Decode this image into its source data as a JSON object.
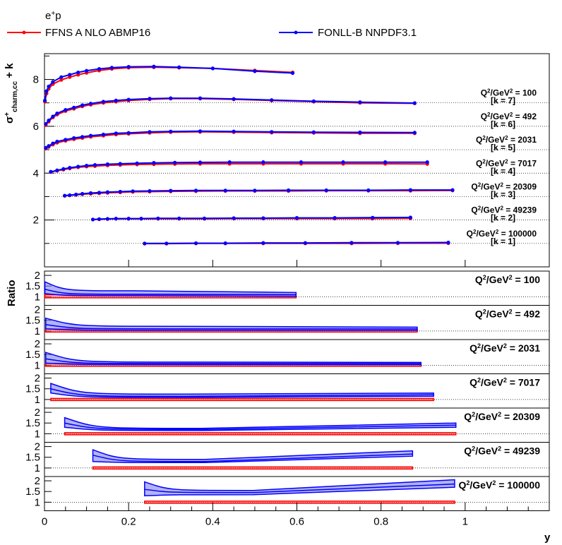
{
  "chart_data": {
    "type": "line",
    "header": {
      "process_label": "e",
      "process_sup": "+",
      "process_tail": "p"
    },
    "legend": [
      {
        "name": "FFNS A NLO ABMP16",
        "color": "#ff0000"
      },
      {
        "name": "FONLL-B NNPDF3.1",
        "color": "#0000ff"
      }
    ],
    "colors": {
      "ffns": "#ff0000",
      "fonll": "#0000ff",
      "fonll_band": "#8080ee",
      "ffns_band": "#ff6666"
    },
    "xlabel": "y",
    "ylabel_top": {
      "sigma": "σ",
      "sup": "+",
      "sub": "charm,cc",
      "tail": " + k"
    },
    "ylabel_ratio": "Ratio",
    "xlim": [
      0,
      1.2
    ],
    "x_ticks": [
      "0",
      "0.2",
      "0.4",
      "0.6",
      "0.8",
      "1"
    ],
    "top_ylim": [
      0,
      9.1
    ],
    "top_y_ticks": [
      "2",
      "4",
      "6",
      "8"
    ],
    "ratio_ylim": [
      0.6,
      2.2
    ],
    "ratio_y_ticks": [
      "1",
      "1.5",
      "2"
    ],
    "panels": [
      {
        "q2": "100",
        "k": "7",
        "label_prefix": "Q",
        "label_unit": "/GeV",
        "label_eq": " = ",
        "k_label": "[k = 7]",
        "ffns": {
          "x": [
            0.001,
            0.005,
            0.01,
            0.02,
            0.04,
            0.06,
            0.08,
            0.1,
            0.13,
            0.16,
            0.2,
            0.26,
            0.32,
            0.4,
            0.5,
            0.59
          ],
          "y": [
            7.05,
            7.4,
            7.6,
            7.8,
            7.98,
            8.1,
            8.2,
            8.28,
            8.38,
            8.45,
            8.5,
            8.52,
            8.5,
            8.47,
            8.38,
            8.3
          ]
        },
        "fonll": {
          "x": [
            0.001,
            0.005,
            0.01,
            0.02,
            0.04,
            0.06,
            0.08,
            0.1,
            0.13,
            0.16,
            0.2,
            0.26,
            0.32,
            0.4,
            0.5,
            0.59
          ],
          "y": [
            7.1,
            7.5,
            7.7,
            7.9,
            8.1,
            8.2,
            8.3,
            8.37,
            8.45,
            8.5,
            8.54,
            8.55,
            8.52,
            8.47,
            8.35,
            8.27
          ]
        },
        "ratio": {
          "xmax": 0.598,
          "fonll_lo": [
            1.15,
            1.05,
            1.02
          ],
          "fonll_hi": [
            1.7,
            1.28,
            1.2
          ],
          "fonll_c": [
            1.35,
            1.12,
            1.1
          ],
          "ffns_hi": 1.05
        }
      },
      {
        "q2": "492",
        "k": "6",
        "label_prefix": "Q",
        "label_unit": "/GeV",
        "label_eq": " = ",
        "k_label": "[k = 6]",
        "ffns": {
          "x": [
            0.003,
            0.01,
            0.02,
            0.03,
            0.05,
            0.07,
            0.09,
            0.11,
            0.14,
            0.17,
            0.2,
            0.25,
            0.3,
            0.37,
            0.45,
            0.54,
            0.64,
            0.75,
            0.88
          ],
          "y": [
            6.05,
            6.2,
            6.38,
            6.5,
            6.65,
            6.75,
            6.85,
            6.92,
            7.0,
            7.05,
            7.1,
            7.15,
            7.18,
            7.18,
            7.15,
            7.1,
            7.05,
            7.0,
            6.98
          ]
        },
        "fonll": {
          "x": [
            0.003,
            0.01,
            0.02,
            0.03,
            0.05,
            0.07,
            0.09,
            0.11,
            0.14,
            0.17,
            0.2,
            0.25,
            0.3,
            0.37,
            0.45,
            0.54,
            0.64,
            0.75,
            0.88
          ],
          "y": [
            6.1,
            6.25,
            6.42,
            6.55,
            6.7,
            6.8,
            6.9,
            6.97,
            7.05,
            7.1,
            7.14,
            7.18,
            7.2,
            7.2,
            7.17,
            7.12,
            7.07,
            7.03,
            6.99
          ]
        },
        "ratio": {
          "xmax": 0.886,
          "fonll_lo": [
            1.1,
            1.03,
            1.03
          ],
          "fonll_hi": [
            1.6,
            1.22,
            1.18
          ],
          "fonll_c": [
            1.3,
            1.1,
            1.1
          ],
          "ffns_hi": 1.05
        }
      },
      {
        "q2": "2031",
        "k": "5",
        "label_prefix": "Q",
        "label_unit": "/GeV",
        "label_eq": " = ",
        "k_label": "[k = 5]",
        "ffns": {
          "x": [
            0.003,
            0.01,
            0.02,
            0.03,
            0.05,
            0.07,
            0.09,
            0.11,
            0.14,
            0.17,
            0.2,
            0.25,
            0.3,
            0.37,
            0.45,
            0.54,
            0.64,
            0.75,
            0.88
          ],
          "y": [
            5.05,
            5.12,
            5.22,
            5.3,
            5.38,
            5.45,
            5.5,
            5.55,
            5.6,
            5.65,
            5.68,
            5.72,
            5.75,
            5.76,
            5.75,
            5.73,
            5.72,
            5.7,
            5.7
          ]
        },
        "fonll": {
          "x": [
            0.003,
            0.01,
            0.02,
            0.03,
            0.05,
            0.07,
            0.09,
            0.11,
            0.14,
            0.17,
            0.2,
            0.25,
            0.3,
            0.37,
            0.45,
            0.54,
            0.64,
            0.75,
            0.88
          ],
          "y": [
            5.08,
            5.16,
            5.27,
            5.35,
            5.43,
            5.5,
            5.55,
            5.6,
            5.65,
            5.7,
            5.72,
            5.76,
            5.78,
            5.79,
            5.78,
            5.76,
            5.75,
            5.74,
            5.73
          ]
        },
        "ratio": {
          "xmax": 0.895,
          "fonll_lo": [
            1.1,
            1.03,
            1.03
          ],
          "fonll_hi": [
            1.6,
            1.15,
            1.13
          ],
          "fonll_c": [
            1.3,
            1.08,
            1.08
          ],
          "ffns_hi": 1.04
        }
      },
      {
        "q2": "7017",
        "k": "4",
        "label_prefix": "Q",
        "label_unit": "/GeV",
        "label_eq": " = ",
        "k_label": "[k = 4]",
        "ffns": {
          "x": [
            0.015,
            0.03,
            0.045,
            0.06,
            0.08,
            0.1,
            0.12,
            0.15,
            0.18,
            0.22,
            0.26,
            0.31,
            0.37,
            0.44,
            0.52,
            0.61,
            0.71,
            0.81,
            0.91
          ],
          "y": [
            4.05,
            4.1,
            4.15,
            4.2,
            4.25,
            4.28,
            4.3,
            4.33,
            4.35,
            4.37,
            4.38,
            4.39,
            4.4,
            4.4,
            4.4,
            4.4,
            4.4,
            4.4,
            4.39
          ]
        },
        "fonll": {
          "x": [
            0.015,
            0.03,
            0.045,
            0.06,
            0.08,
            0.1,
            0.12,
            0.15,
            0.18,
            0.22,
            0.26,
            0.31,
            0.37,
            0.44,
            0.52,
            0.61,
            0.71,
            0.81,
            0.91
          ],
          "y": [
            4.06,
            4.12,
            4.18,
            4.23,
            4.28,
            4.32,
            4.35,
            4.38,
            4.4,
            4.42,
            4.44,
            4.45,
            4.46,
            4.47,
            4.47,
            4.47,
            4.47,
            4.47,
            4.47
          ]
        },
        "ratio": {
          "xmax": 0.925,
          "fonll_lo": [
            1.3,
            1.1,
            1.15
          ],
          "fonll_hi": [
            1.75,
            1.25,
            1.3
          ],
          "fonll_c": [
            1.5,
            1.15,
            1.22
          ],
          "ffns_hi": 1.0
        }
      },
      {
        "q2": "20309",
        "k": "3",
        "label_prefix": "Q",
        "label_unit": "/GeV",
        "label_eq": " = ",
        "k_label": "[k = 3]",
        "ffns": {
          "x": [
            0.048,
            0.06,
            0.075,
            0.09,
            0.11,
            0.13,
            0.15,
            0.18,
            0.21,
            0.25,
            0.3,
            0.36,
            0.43,
            0.5,
            0.58,
            0.67,
            0.77,
            0.87,
            0.97
          ],
          "y": [
            3.03,
            3.05,
            3.07,
            3.1,
            3.12,
            3.14,
            3.16,
            3.18,
            3.2,
            3.21,
            3.22,
            3.23,
            3.24,
            3.24,
            3.24,
            3.25,
            3.25,
            3.25,
            3.26
          ]
        },
        "fonll": {
          "x": [
            0.048,
            0.06,
            0.075,
            0.09,
            0.11,
            0.13,
            0.15,
            0.18,
            0.21,
            0.25,
            0.3,
            0.36,
            0.43,
            0.5,
            0.58,
            0.67,
            0.77,
            0.87,
            0.97
          ],
          "y": [
            3.04,
            3.06,
            3.09,
            3.12,
            3.15,
            3.17,
            3.19,
            3.21,
            3.23,
            3.24,
            3.25,
            3.26,
            3.26,
            3.26,
            3.27,
            3.27,
            3.27,
            3.28,
            3.28
          ]
        },
        "ratio": {
          "xmax": 0.978,
          "fonll_lo": [
            1.3,
            1.15,
            1.3
          ],
          "fonll_hi": [
            1.75,
            1.25,
            1.5
          ],
          "fonll_c": [
            1.5,
            1.2,
            1.4
          ],
          "ffns_hi": 1.0
        }
      },
      {
        "q2": "49239",
        "k": "2",
        "label_prefix": "Q",
        "label_unit": "/GeV",
        "label_eq": " = ",
        "k_label": "[k = 2]",
        "ffns": {
          "x": [
            0.115,
            0.13,
            0.15,
            0.17,
            0.2,
            0.23,
            0.27,
            0.32,
            0.38,
            0.45,
            0.52,
            0.6,
            0.69,
            0.78,
            0.87
          ],
          "y": [
            2.02,
            2.03,
            2.04,
            2.05,
            2.05,
            2.05,
            2.05,
            2.05,
            2.05,
            2.06,
            2.06,
            2.06,
            2.06,
            2.06,
            2.07
          ]
        },
        "fonll": {
          "x": [
            0.115,
            0.13,
            0.15,
            0.17,
            0.2,
            0.23,
            0.27,
            0.32,
            0.38,
            0.45,
            0.52,
            0.6,
            0.69,
            0.78,
            0.87
          ],
          "y": [
            2.02,
            2.04,
            2.05,
            2.06,
            2.06,
            2.06,
            2.07,
            2.07,
            2.07,
            2.08,
            2.08,
            2.09,
            2.09,
            2.1,
            2.11
          ]
        },
        "ratio": {
          "xmax": 0.875,
          "fonll_lo": [
            1.3,
            1.25,
            1.55
          ],
          "fonll_hi": [
            1.85,
            1.4,
            1.8
          ],
          "fonll_c": [
            1.6,
            1.3,
            1.65
          ],
          "ffns_hi": 1.0
        }
      },
      {
        "q2": "100000",
        "k": "1",
        "label_prefix": "Q",
        "label_unit": "/GeV",
        "label_eq": " = ",
        "k_label": "[k = 1]",
        "ffns": {
          "x": [
            0.238,
            0.29,
            0.36,
            0.43,
            0.52,
            0.62,
            0.73,
            0.84,
            0.96
          ],
          "y": [
            0.99,
            0.99,
            1.0,
            1.0,
            1.0,
            1.0,
            1.0,
            1.01,
            1.01
          ]
        },
        "fonll": {
          "x": [
            0.238,
            0.29,
            0.36,
            0.43,
            0.52,
            0.62,
            0.73,
            0.84,
            0.96
          ],
          "y": [
            1.0,
            1.0,
            1.01,
            1.01,
            1.02,
            1.02,
            1.03,
            1.03,
            1.04
          ]
        },
        "ratio": {
          "xmax": 0.975,
          "fonll_lo": [
            1.3,
            1.35,
            1.7
          ],
          "fonll_hi": [
            1.95,
            1.55,
            2.05
          ],
          "fonll_c": [
            1.6,
            1.45,
            1.85
          ],
          "ffns_hi": 1.0
        }
      }
    ]
  }
}
